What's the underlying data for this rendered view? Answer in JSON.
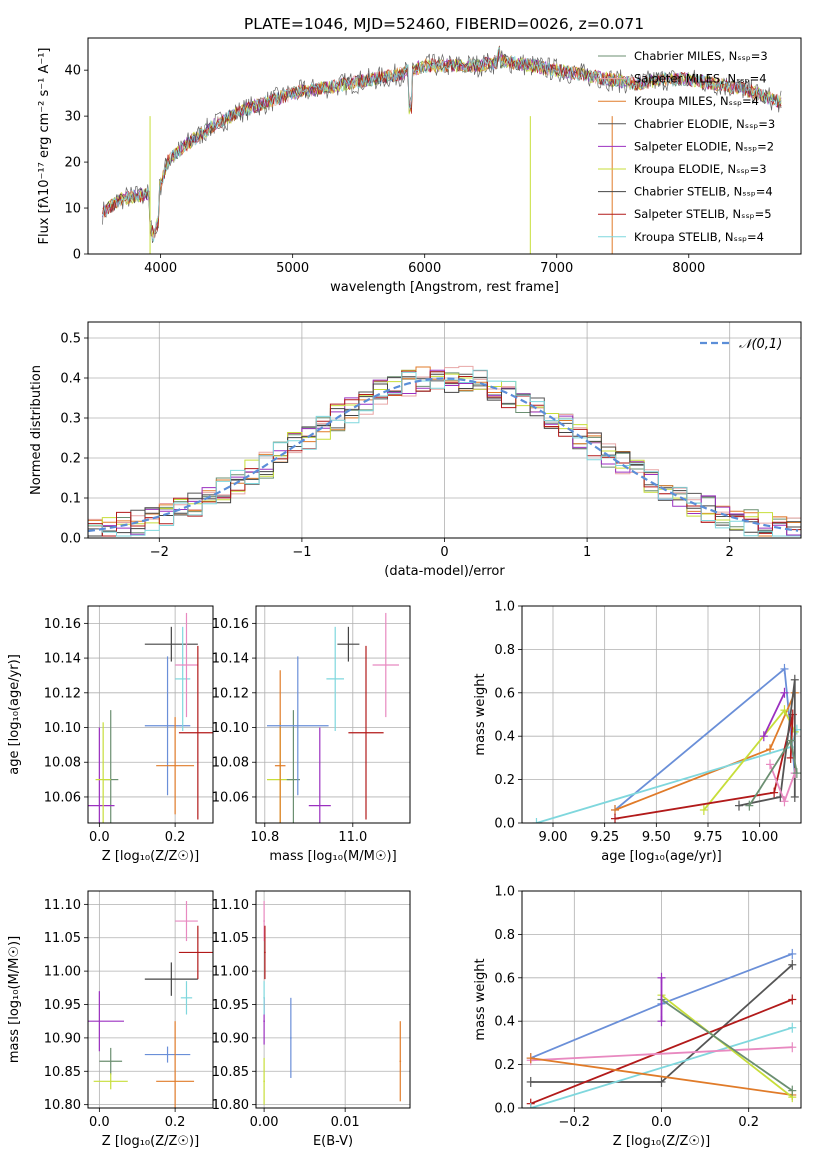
{
  "figure": {
    "title": "PLATE=1046, MJD=52460, FIBERID=0026, z=0.071"
  },
  "colors": {
    "chabrier_miles": "#6b8f71",
    "salpeter_miles": "#e8a6a6",
    "kroupa_miles": "#e07b29",
    "chabrier_elodie": "#555555",
    "salpeter_elodie": "#9b30c0",
    "kroupa_elodie": "#c7de3a",
    "chabrier_stelib": "#444444",
    "salpeter_stelib": "#b21a1a",
    "kroupa_stelib": "#7fd7dd",
    "pink": "#e889c0",
    "blue": "#6a8fd8",
    "gray": "#555555",
    "normal": "#5b8ed8"
  },
  "chart_data": [
    {
      "id": "spectrum",
      "type": "line",
      "xlabel": "wavelength [Angstrom, rest frame]",
      "ylabel": "Flux [fλ10⁻¹⁷ erg cm⁻² s⁻¹ A⁻¹]",
      "xlim": [
        3450,
        8850
      ],
      "ylim": [
        0,
        47
      ],
      "xticks": [
        4000,
        5000,
        6000,
        7000,
        8000
      ],
      "yticks": [
        0,
        10,
        20,
        30,
        40
      ],
      "legend_position": "right",
      "legend": [
        "Chabrier MILES, N_SSP=3",
        "Salpeter MILES, N_SSP=4",
        "Kroupa MILES, N_SSP=4",
        "Chabrier ELODIE, N_SSP=3",
        "Salpeter ELODIE, N_SSP=2",
        "Kroupa ELODIE, N_SSP=3",
        "Chabrier STELIB, N_SSP=4",
        "Salpeter STELIB, N_SSP=5",
        "Kroupa STELIB, N_SSP=4"
      ],
      "envelope": {
        "x": [
          3560,
          3700,
          3900,
          3950,
          4050,
          4200,
          4400,
          4600,
          4800,
          5000,
          5200,
          5400,
          5600,
          5800,
          6000,
          6200,
          6400,
          6600,
          6800,
          7000,
          7200,
          7400,
          7600,
          7800,
          8000,
          8200,
          8400,
          8600,
          8700
        ],
        "y": [
          9,
          12,
          13,
          10,
          20,
          24,
          28,
          31,
          33,
          35,
          36,
          37,
          38,
          39,
          41,
          41,
          41,
          42,
          41,
          40,
          39,
          38,
          37,
          38,
          38,
          37,
          36,
          34,
          33
        ]
      }
    },
    {
      "id": "residuals",
      "type": "histogram",
      "xlabel": "(data-model)/error",
      "ylabel": "Normed distribution",
      "xlim": [
        -2.5,
        2.5
      ],
      "ylim": [
        0,
        0.54
      ],
      "xticks": [
        -2,
        -1,
        0,
        1,
        2
      ],
      "yticks": [
        0.0,
        0.1,
        0.2,
        0.3,
        0.4,
        0.5
      ],
      "legend": [
        "𝒩(0,1)"
      ],
      "legend_position": "top-right"
    },
    {
      "id": "age_vs_Z",
      "type": "scatter",
      "xlabel": "Z [log₁₀(Z/Z☉)]",
      "ylabel": "age  [log₁₀(age/yr)]",
      "xlim": [
        -0.03,
        0.3
      ],
      "ylim": [
        10.045,
        10.17
      ],
      "xticks": [
        0.0,
        0.2
      ],
      "yticks": [
        10.06,
        10.08,
        10.1,
        10.12,
        10.14,
        10.16
      ],
      "points": [
        {
          "c": "chabrier_miles",
          "x": 0.03,
          "y": 10.07,
          "ex": 0.02,
          "ey": 0.04
        },
        {
          "c": "salpeter_elodie",
          "x": 0.0,
          "y": 10.055,
          "ex": 0.04,
          "ey": 0.045
        },
        {
          "c": "kroupa_elodie",
          "x": 0.01,
          "y": 10.07,
          "ex": 0.02,
          "ey": 0.033
        },
        {
          "c": "chabrier_stelib",
          "x": 0.19,
          "y": 10.148,
          "ex": 0.07,
          "ey": 0.01
        },
        {
          "c": "blue",
          "x": 0.18,
          "y": 10.101,
          "ex": 0.06,
          "ey": 0.04
        },
        {
          "c": "kroupa_miles",
          "x": 0.2,
          "y": 10.078,
          "ex": 0.05,
          "ey": 0.028
        },
        {
          "c": "kroupa_stelib",
          "x": 0.22,
          "y": 10.128,
          "ex": 0.02,
          "ey": 0.03
        },
        {
          "c": "pink",
          "x": 0.23,
          "y": 10.136,
          "ex": 0.03,
          "ey": 0.03
        },
        {
          "c": "salpeter_stelib",
          "x": 0.26,
          "y": 10.097,
          "ex": 0.05,
          "ey": 0.05
        }
      ]
    },
    {
      "id": "age_vs_mass",
      "type": "scatter",
      "xlabel": "mass [log₁₀(M/M☉)]",
      "ylabel": "",
      "xlim": [
        10.78,
        11.13
      ],
      "ylim": [
        10.045,
        10.17
      ],
      "xticks": [
        10.8,
        11.0
      ],
      "yticks": [
        10.06,
        10.08,
        10.1,
        10.12,
        10.14,
        10.16
      ],
      "points": [
        {
          "c": "kroupa_elodie",
          "x": 10.835,
          "y": 10.07,
          "ex": 0.03,
          "ey": 0.033
        },
        {
          "c": "chabrier_miles",
          "x": 10.865,
          "y": 10.07,
          "ex": 0.015,
          "ey": 0.04
        },
        {
          "c": "kroupa_miles",
          "x": 10.835,
          "y": 10.078,
          "ex": 0.012,
          "ey": 0.055
        },
        {
          "c": "salpeter_elodie",
          "x": 10.925,
          "y": 10.055,
          "ex": 0.025,
          "ey": 0.045
        },
        {
          "c": "blue",
          "x": 10.875,
          "y": 10.101,
          "ex": 0.07,
          "ey": 0.04
        },
        {
          "c": "kroupa_stelib",
          "x": 10.96,
          "y": 10.128,
          "ex": 0.02,
          "ey": 0.03
        },
        {
          "c": "chabrier_stelib",
          "x": 10.99,
          "y": 10.148,
          "ex": 0.025,
          "ey": 0.01
        },
        {
          "c": "salpeter_stelib",
          "x": 11.03,
          "y": 10.097,
          "ex": 0.04,
          "ey": 0.05
        },
        {
          "c": "pink",
          "x": 11.075,
          "y": 10.136,
          "ex": 0.03,
          "ey": 0.03
        }
      ]
    },
    {
      "id": "weight_vs_age",
      "type": "line",
      "xlabel": "age  [log₁₀(age/yr)]",
      "ylabel": "mass weight",
      "xlim": [
        8.85,
        10.2
      ],
      "ylim": [
        0,
        1.0
      ],
      "xticks": [
        9.0,
        9.25,
        9.5,
        9.75,
        10.0
      ],
      "yticks": [
        0.0,
        0.2,
        0.4,
        0.6,
        0.8,
        1.0
      ],
      "series": [
        {
          "c": "blue",
          "x": [
            9.3,
            10.12,
            10.17
          ],
          "y": [
            0.06,
            0.71,
            0.23
          ]
        },
        {
          "c": "kroupa_miles",
          "x": [
            9.3,
            10.05,
            10.17
          ],
          "y": [
            0.06,
            0.34,
            0.6
          ]
        },
        {
          "c": "kroupa_stelib",
          "x": [
            8.92,
            10.15,
            10.18
          ],
          "y": [
            0.0,
            0.35,
            0.43
          ]
        },
        {
          "c": "kroupa_elodie",
          "x": [
            9.73,
            10.12,
            10.17
          ],
          "y": [
            0.06,
            0.52,
            0.42
          ]
        },
        {
          "c": "salpeter_elodie",
          "x": [
            10.02,
            10.12
          ],
          "y": [
            0.4,
            0.6
          ]
        },
        {
          "c": "salpeter_stelib",
          "x": [
            9.3,
            10.07,
            10.16,
            10.15
          ],
          "y": [
            0.02,
            0.14,
            0.5,
            0.3
          ]
        },
        {
          "c": "gray",
          "x": [
            9.9,
            10.1,
            10.17,
            10.17
          ],
          "y": [
            0.08,
            0.12,
            0.66,
            0.12
          ]
        },
        {
          "c": "pink",
          "x": [
            10.05,
            10.12,
            10.17
          ],
          "y": [
            0.27,
            0.1,
            0.23
          ]
        },
        {
          "c": "chabrier_miles",
          "x": [
            9.95,
            10.15,
            10.18
          ],
          "y": [
            0.08,
            0.38,
            0.23
          ]
        }
      ]
    },
    {
      "id": "mass_vs_Z",
      "type": "scatter",
      "xlabel": "Z [log₁₀(Z/Z☉)]",
      "ylabel": "mass [log₁₀(M/M☉)]",
      "xlim": [
        -0.03,
        0.3
      ],
      "ylim": [
        10.795,
        11.12
      ],
      "xticks": [
        0.0,
        0.2
      ],
      "yticks": [
        10.8,
        10.85,
        10.9,
        10.95,
        11.0,
        11.05,
        11.1
      ],
      "points": [
        {
          "c": "salpeter_elodie",
          "x": 0.0,
          "y": 10.925,
          "ex": 0.065,
          "ey": 0.045
        },
        {
          "c": "chabrier_miles",
          "x": 0.03,
          "y": 10.865,
          "ex": 0.03,
          "ey": 0.02
        },
        {
          "c": "kroupa_elodie",
          "x": 0.03,
          "y": 10.835,
          "ex": 0.045,
          "ey": 0.012
        },
        {
          "c": "chabrier_stelib",
          "x": 0.19,
          "y": 10.988,
          "ex": 0.07,
          "ey": 0.025
        },
        {
          "c": "blue",
          "x": 0.18,
          "y": 10.875,
          "ex": 0.06,
          "ey": 0.012
        },
        {
          "c": "kroupa_miles",
          "x": 0.2,
          "y": 10.835,
          "ex": 0.05,
          "ey": 0.09
        },
        {
          "c": "kroupa_stelib",
          "x": 0.23,
          "y": 10.96,
          "ex": 0.015,
          "ey": 0.025
        },
        {
          "c": "pink",
          "x": 0.23,
          "y": 11.075,
          "ex": 0.03,
          "ey": 0.03
        },
        {
          "c": "salpeter_stelib",
          "x": 0.26,
          "y": 11.028,
          "ex": 0.05,
          "ey": 0.04
        }
      ]
    },
    {
      "id": "mass_vs_ebv",
      "type": "scatter",
      "xlabel": "E(B-V)",
      "ylabel": "",
      "xlim": [
        -0.001,
        0.018
      ],
      "ylim": [
        10.795,
        11.12
      ],
      "xticks": [
        0.0,
        0.01
      ],
      "yticks": [
        10.8,
        10.85,
        10.9,
        10.95,
        11.0,
        11.05,
        11.1
      ],
      "xticklabels": [
        "0.00",
        "0.01"
      ],
      "points": [
        {
          "c": "kroupa_elodie",
          "x": 0.0,
          "y": 10.835,
          "ex": 0.0001,
          "ey": 0.035
        },
        {
          "c": "salpeter_elodie",
          "x": 0.0,
          "y": 10.925,
          "ex": 0.0001,
          "ey": 0.035
        },
        {
          "c": "kroupa_stelib",
          "x": 0.0,
          "y": 10.96,
          "ex": 0.0001,
          "ey": 0.025
        },
        {
          "c": "pink",
          "x": 0.0,
          "y": 11.075,
          "ex": 0.0001,
          "ey": 0.03
        },
        {
          "c": "salpeter_stelib",
          "x": 0.0001,
          "y": 11.028,
          "ex": 0.0001,
          "ey": 0.04
        },
        {
          "c": "blue",
          "x": 0.0033,
          "y": 10.9,
          "ex": 0.0001,
          "ey": 0.06
        },
        {
          "c": "kroupa_miles",
          "x": 0.0168,
          "y": 10.865,
          "ex": 0.0001,
          "ey": 0.06
        }
      ]
    },
    {
      "id": "weight_vs_Z",
      "type": "line",
      "xlabel": "Z [log₁₀(Z/Z☉)]",
      "ylabel": "mass weight",
      "xlim": [
        -0.32,
        0.32
      ],
      "ylim": [
        0,
        1.0
      ],
      "xticks": [
        -0.2,
        0.0,
        0.2
      ],
      "yticks": [
        0.0,
        0.2,
        0.4,
        0.6,
        0.8,
        1.0
      ],
      "series": [
        {
          "c": "blue",
          "x": [
            -0.3,
            0.0,
            0.3
          ],
          "y": [
            0.23,
            0.48,
            0.71
          ]
        },
        {
          "c": "gray",
          "x": [
            -0.3,
            0.0,
            0.3
          ],
          "y": [
            0.12,
            0.12,
            0.66
          ]
        },
        {
          "c": "salpeter_stelib",
          "x": [
            -0.3,
            0.3
          ],
          "y": [
            0.02,
            0.5
          ]
        },
        {
          "c": "kroupa_stelib",
          "x": [
            -0.3,
            0.3
          ],
          "y": [
            0.0,
            0.37
          ]
        },
        {
          "c": "pink",
          "x": [
            -0.3,
            0.3
          ],
          "y": [
            0.22,
            0.28
          ]
        },
        {
          "c": "kroupa_miles",
          "x": [
            -0.3,
            0.3
          ],
          "y": [
            0.23,
            0.06
          ]
        },
        {
          "c": "kroupa_elodie",
          "x": [
            0.0,
            0.3
          ],
          "y": [
            0.52,
            0.05
          ]
        },
        {
          "c": "chabrier_miles",
          "x": [
            0.0,
            0.3
          ],
          "y": [
            0.5,
            0.08
          ]
        },
        {
          "c": "salpeter_elodie",
          "x": [
            0.0,
            0.0
          ],
          "y": [
            0.4,
            0.6
          ]
        }
      ]
    }
  ]
}
